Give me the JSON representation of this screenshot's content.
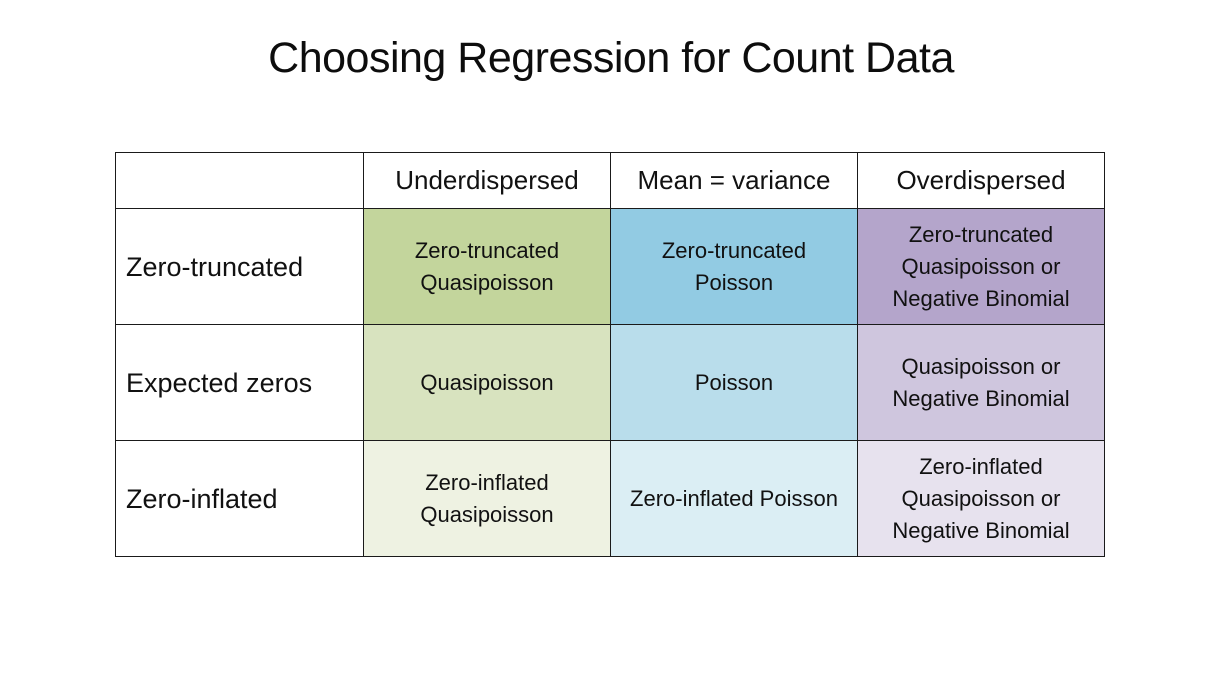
{
  "slide": {
    "title": "Choosing Regression for Count Data"
  },
  "table": {
    "corner": "",
    "columns": [
      "Underdispersed",
      "Mean = variance",
      "Overdispersed"
    ],
    "rows": [
      {
        "label": "Zero-truncated",
        "cells": [
          {
            "text": "Zero-truncated\nQuasipoisson",
            "color": "#c3d59c"
          },
          {
            "text": "Zero-truncated\nPoisson",
            "color": "#92cbe3"
          },
          {
            "text": "Zero-truncated\nQuasipoisson or\nNegative Binomial",
            "color": "#b4a5cb"
          }
        ]
      },
      {
        "label": "Expected zeros",
        "cells": [
          {
            "text": "Quasipoisson",
            "color": "#d8e3bf"
          },
          {
            "text": "Poisson",
            "color": "#b9ddeb"
          },
          {
            "text": "Quasipoisson or\nNegative Binomial",
            "color": "#cfc6de"
          }
        ]
      },
      {
        "label": "Zero-inflated",
        "cells": [
          {
            "text": "Zero-inflated\nQuasipoisson",
            "color": "#eef2e2"
          },
          {
            "text": "Zero-inflated Poisson",
            "color": "#dbeef4"
          },
          {
            "text": "Zero-inflated\nQuasipoisson or\nNegative Binomial",
            "color": "#e7e2ee"
          }
        ]
      }
    ]
  }
}
